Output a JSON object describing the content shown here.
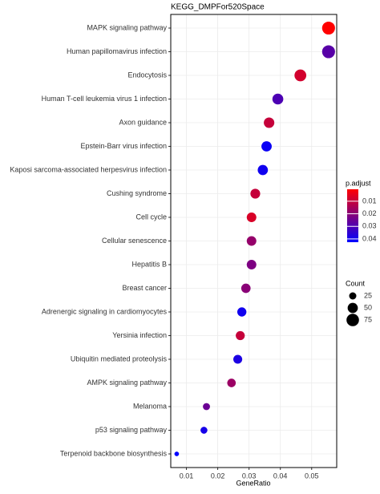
{
  "chart_data": {
    "type": "dotplot",
    "title": "KEGG_DMPFor520Space",
    "x_label": "GeneRatio",
    "categories": [
      "MAPK signaling pathway",
      "Human papillomavirus infection",
      "Endocytosis",
      "Human T-cell leukemia virus 1 infection",
      "Axon guidance",
      "Epstein-Barr virus infection",
      "Kaposi sarcoma-associated herpesvirus infection",
      "Cushing syndrome",
      "Cell cycle",
      "Cellular senescence",
      "Hepatitis B",
      "Breast cancer",
      "Adrenergic signaling in cardiomyocytes",
      "Yersinia infection",
      "Ubiquitin mediated proteolysis",
      "AMPK signaling pathway",
      "Melanoma",
      "p53 signaling pathway",
      "Terpenoid backbone biosynthesis"
    ],
    "values": [
      0.0554,
      0.0554,
      0.0464,
      0.0392,
      0.0364,
      0.0356,
      0.0344,
      0.032,
      0.0308,
      0.0308,
      0.0308,
      0.029,
      0.0277,
      0.0272,
      0.0264,
      0.0244,
      0.0164,
      0.0156,
      0.0069
    ],
    "count": [
      80,
      80,
      67,
      57,
      53,
      51,
      50,
      46,
      44,
      44,
      44,
      42,
      40,
      39,
      38,
      35,
      24,
      23,
      10
    ],
    "p_adjust": [
      0.0005,
      0.028,
      0.008,
      0.03,
      0.01,
      0.041,
      0.04,
      0.01,
      0.007,
      0.018,
      0.022,
      0.02,
      0.04,
      0.01,
      0.038,
      0.017,
      0.025,
      0.039,
      0.0426
    ],
    "xlim": [
      0.005,
      0.058
    ],
    "xticks": [
      0.01,
      0.02,
      0.03,
      0.04,
      0.05
    ],
    "color_title": "p.adjust",
    "color_lim": [
      0.0005,
      0.0426
    ],
    "color_ticks": [
      0.01,
      0.02,
      0.03,
      0.04
    ],
    "color_low": "#ff0000",
    "color_high": "#0000ff",
    "size_title": "Count",
    "size_ticks": [
      25,
      50,
      75
    ],
    "grid": true
  }
}
